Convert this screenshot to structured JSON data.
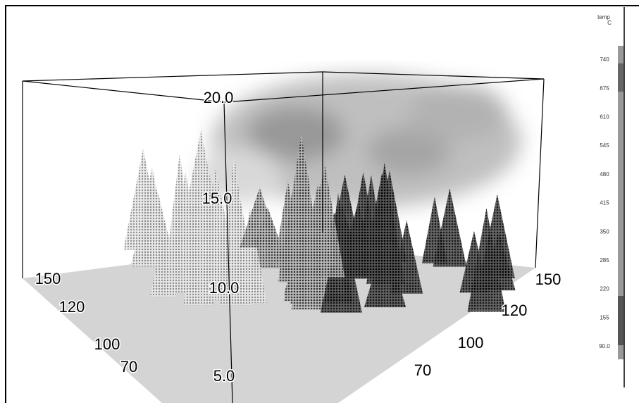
{
  "vertical_axis": {
    "labels": [
      "20.0",
      "15.0",
      "10.0",
      "5.0"
    ]
  },
  "left_axis": {
    "labels": [
      "150",
      "120",
      "100",
      "70"
    ]
  },
  "right_axis": {
    "labels": [
      "150",
      "120",
      "100",
      "70"
    ]
  },
  "colorbar": {
    "title": "temp",
    "unit": "C",
    "labels": [
      "740",
      "675",
      "610",
      "545",
      "480",
      "415",
      "350",
      "285",
      "220",
      "155",
      "90.0"
    ]
  }
}
